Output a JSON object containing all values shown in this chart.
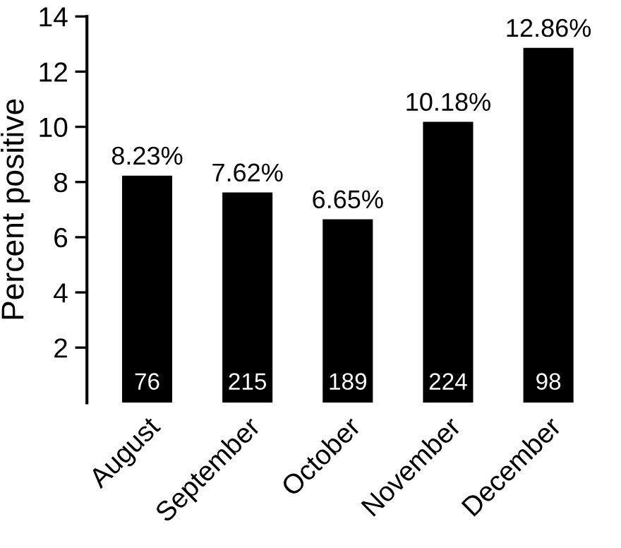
{
  "chart_data": {
    "type": "bar",
    "ylabel": "Percent positive",
    "categories": [
      "August",
      "September",
      "October",
      "November",
      "December"
    ],
    "values": [
      8.23,
      7.62,
      6.65,
      10.18,
      12.86
    ],
    "value_labels": [
      "8.23%",
      "7.62%",
      "6.65%",
      "10.18%",
      "12.86%"
    ],
    "color": "#000000",
    "ylim": [
      0,
      14
    ],
    "yticks": [
      2,
      4,
      6,
      8,
      10,
      12,
      14
    ],
    "grid": false,
    "annotations": [
      "76",
      "215",
      "189",
      "224",
      "98"
    ]
  }
}
